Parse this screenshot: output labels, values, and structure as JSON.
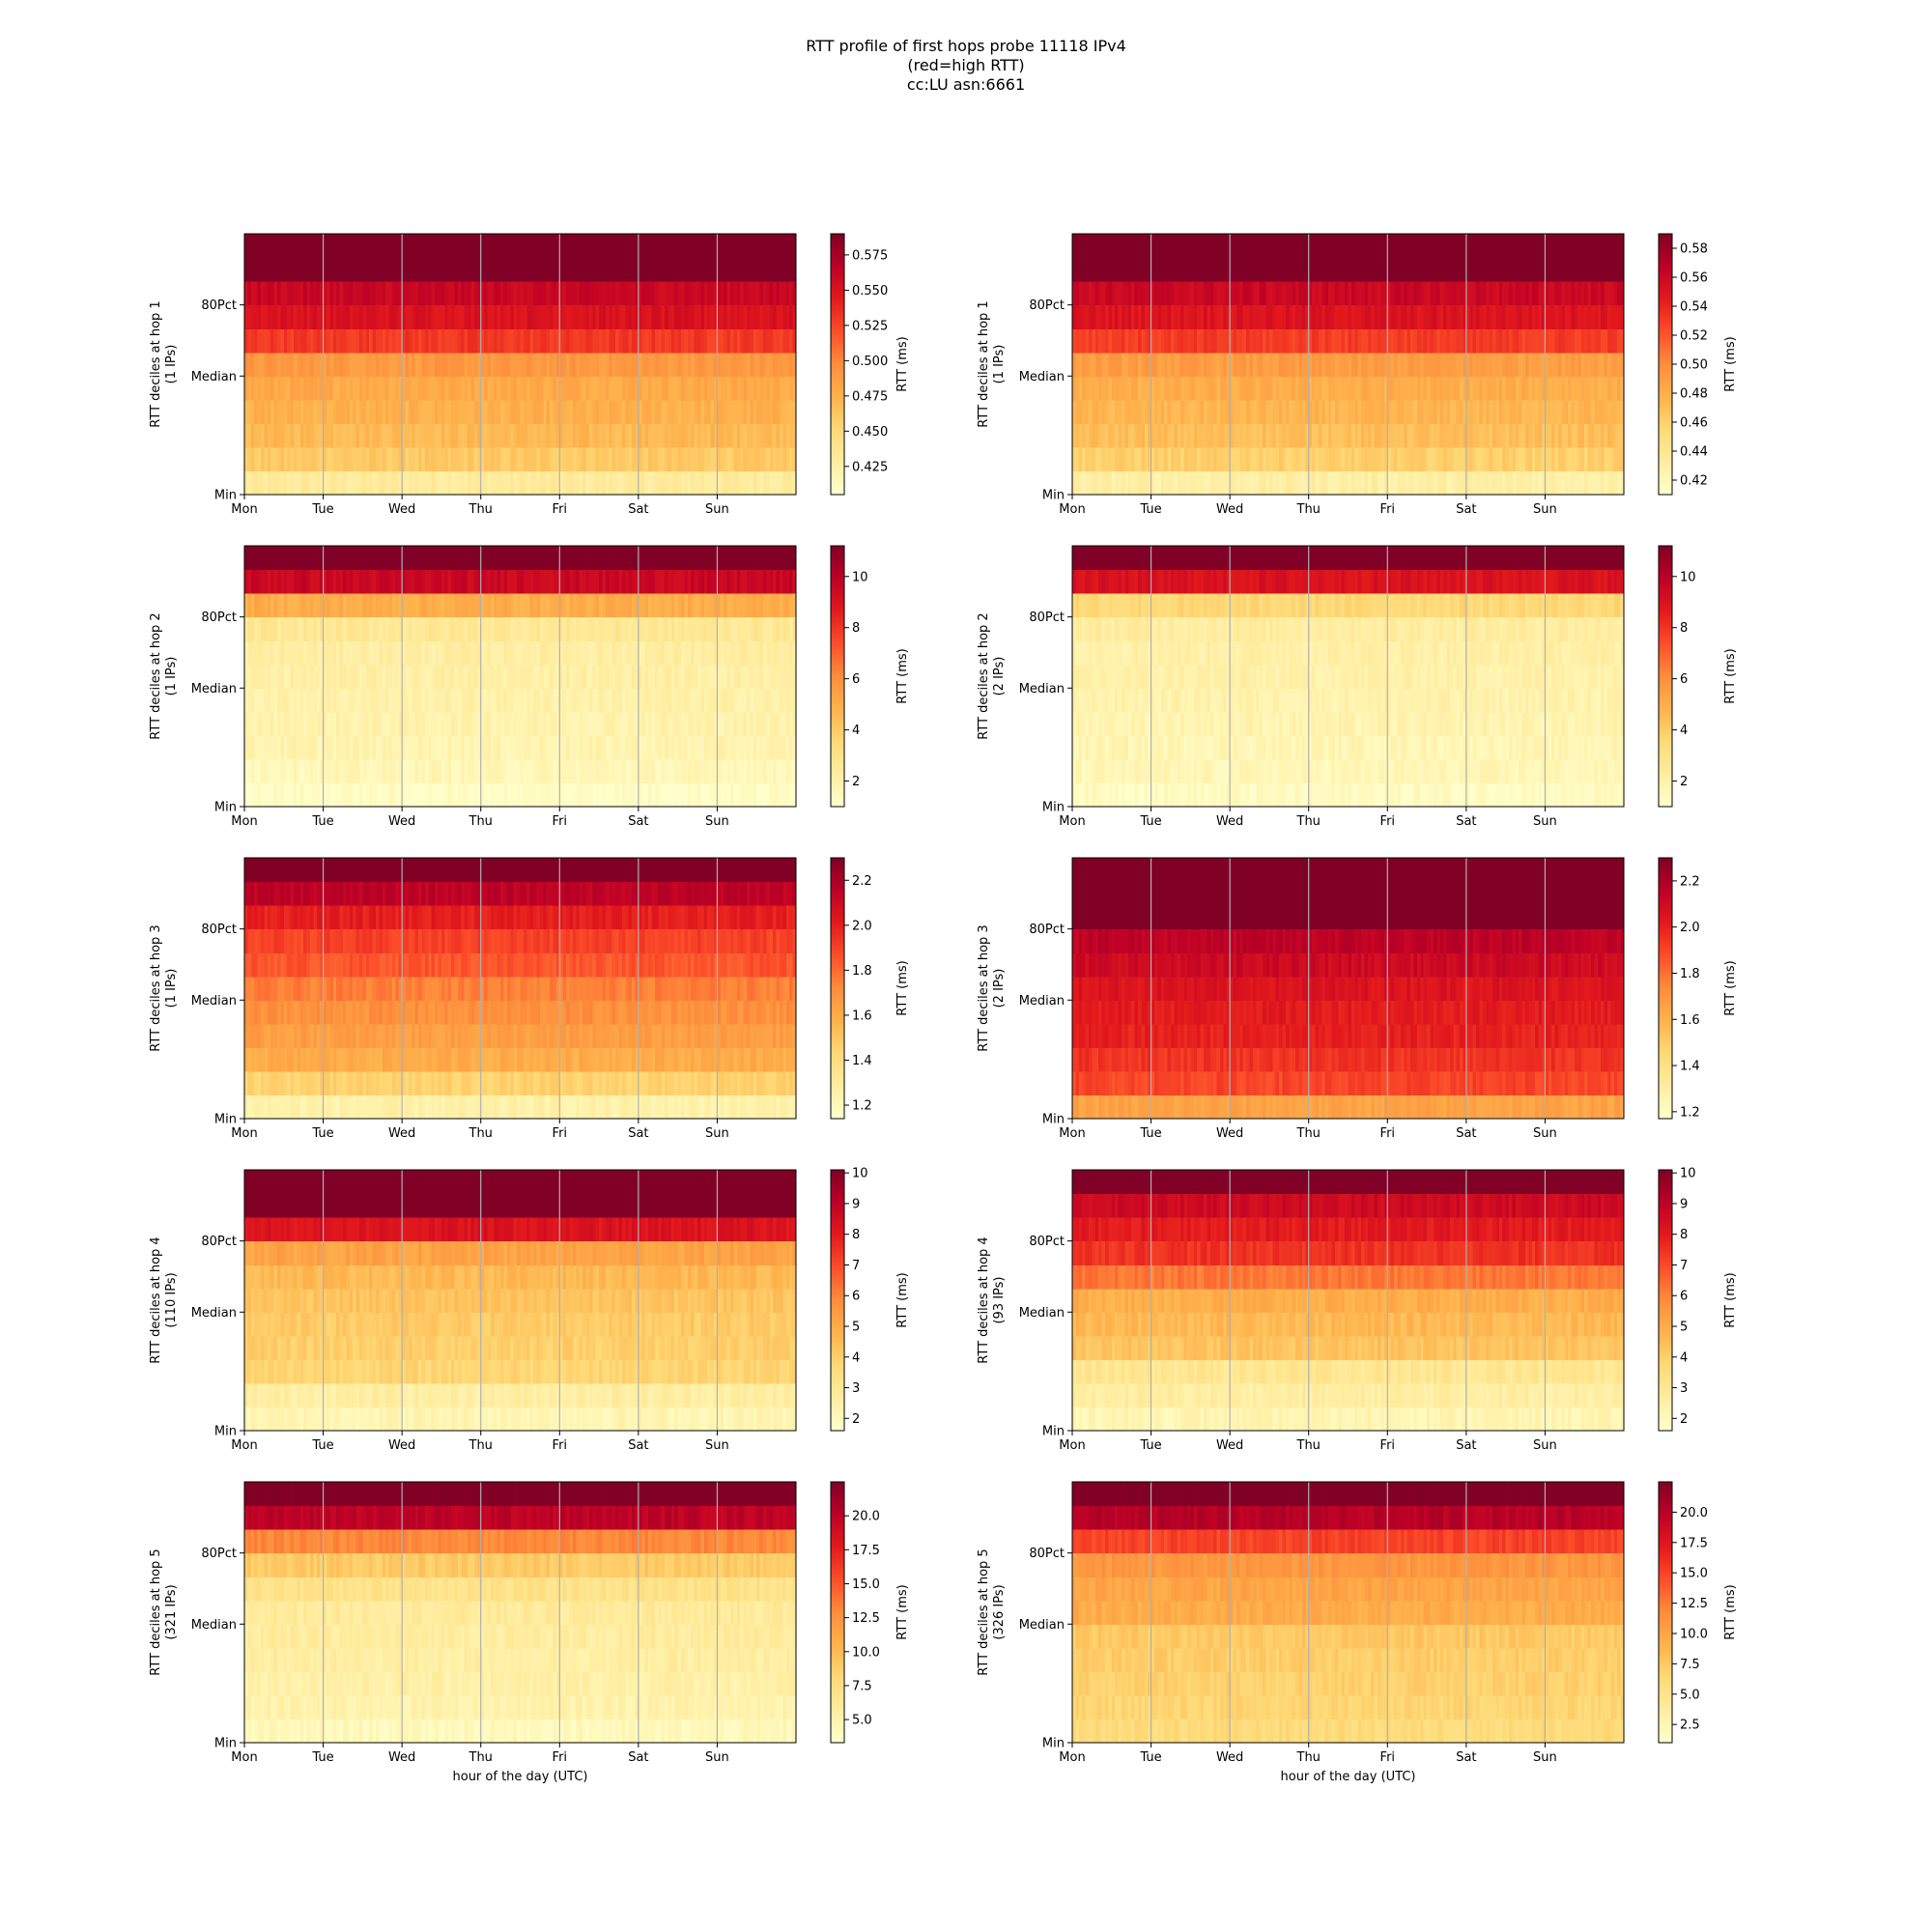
{
  "figure": {
    "title_lines": [
      "RTT profile of first hops probe 11118 IPv4",
      "(red=high RTT)",
      "cc:LU asn:6661"
    ]
  },
  "chart_data": [
    {
      "type": "heatmap",
      "panel": "hop1-left",
      "ylabel_lines": [
        "RTT deciles at hop 1",
        "(1 IPs)"
      ],
      "xlabel": "",
      "x_ticks": [
        "Mon",
        "Tue",
        "Wed",
        "Thu",
        "Fri",
        "Sat",
        "Sun"
      ],
      "y_ticks": [
        "Min",
        "Median",
        "80Pct"
      ],
      "colorbar": {
        "label": "RTT (ms)",
        "range": [
          0.405,
          0.59
        ],
        "ticks": [
          "0.425",
          "0.450",
          "0.475",
          "0.500",
          "0.525",
          "0.550",
          "0.575"
        ]
      },
      "decile_rtt": [
        0.43,
        0.46,
        0.47,
        0.475,
        0.48,
        0.49,
        0.53,
        0.55,
        0.56,
        0.6,
        0.6
      ],
      "deciles": 11,
      "time_columns": 168,
      "grid": true,
      "colormap": "YlOrRd"
    },
    {
      "type": "heatmap",
      "panel": "hop1-right",
      "ylabel_lines": [
        "RTT deciles at hop 1",
        "(1 IPs)"
      ],
      "xlabel": "",
      "x_ticks": [
        "Mon",
        "Tue",
        "Wed",
        "Thu",
        "Fri",
        "Sat",
        "Sun"
      ],
      "y_ticks": [
        "Min",
        "Median",
        "80Pct"
      ],
      "colorbar": {
        "label": "RTT (ms)",
        "range": [
          0.41,
          0.59
        ],
        "ticks": [
          "0.42",
          "0.44",
          "0.46",
          "0.48",
          "0.50",
          "0.52",
          "0.54",
          "0.56",
          "0.58"
        ]
      },
      "decile_rtt": [
        0.43,
        0.46,
        0.47,
        0.475,
        0.48,
        0.49,
        0.53,
        0.55,
        0.56,
        0.6,
        0.6
      ],
      "deciles": 11,
      "time_columns": 168,
      "grid": true,
      "colormap": "YlOrRd"
    },
    {
      "type": "heatmap",
      "panel": "hop2-left",
      "ylabel_lines": [
        "RTT deciles at hop 2",
        "(1 IPs)"
      ],
      "xlabel": "",
      "x_ticks": [
        "Mon",
        "Tue",
        "Wed",
        "Thu",
        "Fri",
        "Sat",
        "Sun"
      ],
      "y_ticks": [
        "Min",
        "Median",
        "80Pct"
      ],
      "colorbar": {
        "label": "RTT (ms)",
        "range": [
          1,
          11.2
        ],
        "ticks": [
          "2",
          "4",
          "6",
          "8",
          "10"
        ]
      },
      "decile_rtt": [
        1.2,
        1.6,
        1.8,
        1.9,
        2,
        2.1,
        2.2,
        2.6,
        5,
        9.5,
        11.5
      ],
      "deciles": 11,
      "time_columns": 168,
      "grid": true,
      "colormap": "YlOrRd"
    },
    {
      "type": "heatmap",
      "panel": "hop2-right",
      "ylabel_lines": [
        "RTT deciles at hop 2",
        "(2 IPs)"
      ],
      "xlabel": "",
      "x_ticks": [
        "Mon",
        "Tue",
        "Wed",
        "Thu",
        "Fri",
        "Sat",
        "Sun"
      ],
      "y_ticks": [
        "Min",
        "Median",
        "80Pct"
      ],
      "colorbar": {
        "label": "RTT (ms)",
        "range": [
          1,
          11.2
        ],
        "ticks": [
          "2",
          "4",
          "6",
          "8",
          "10"
        ]
      },
      "decile_rtt": [
        1.3,
        1.6,
        1.7,
        1.8,
        1.9,
        2,
        2.1,
        2.3,
        3.5,
        9,
        11.5
      ],
      "deciles": 11,
      "time_columns": 168,
      "grid": true,
      "colormap": "YlOrRd"
    },
    {
      "type": "heatmap",
      "panel": "hop3-left",
      "ylabel_lines": [
        "RTT deciles at hop 3",
        "(1 IPs)"
      ],
      "xlabel": "",
      "x_ticks": [
        "Mon",
        "Tue",
        "Wed",
        "Thu",
        "Fri",
        "Sat",
        "Sun"
      ],
      "y_ticks": [
        "Min",
        "Median",
        "80Pct"
      ],
      "colorbar": {
        "label": "RTT (ms)",
        "range": [
          1.14,
          2.3
        ],
        "ticks": [
          "1.2",
          "1.4",
          "1.6",
          "1.8",
          "2.0",
          "2.2"
        ]
      },
      "decile_rtt": [
        1.25,
        1.45,
        1.6,
        1.65,
        1.7,
        1.75,
        1.85,
        1.9,
        2.0,
        2.15,
        2.35
      ],
      "deciles": 11,
      "time_columns": 168,
      "grid": true,
      "colormap": "YlOrRd"
    },
    {
      "type": "heatmap",
      "panel": "hop3-right",
      "ylabel_lines": [
        "RTT deciles at hop 3",
        "(2 IPs)"
      ],
      "xlabel": "",
      "x_ticks": [
        "Mon",
        "Tue",
        "Wed",
        "Thu",
        "Fri",
        "Sat",
        "Sun"
      ],
      "y_ticks": [
        "Min",
        "Median",
        "80Pct"
      ],
      "colorbar": {
        "label": "RTT (ms)",
        "range": [
          1.17,
          2.3
        ],
        "ticks": [
          "1.2",
          "1.4",
          "1.6",
          "1.8",
          "2.0",
          "2.2"
        ]
      },
      "decile_rtt": [
        1.65,
        1.9,
        1.95,
        2.0,
        2.02,
        2.05,
        2.1,
        2.15,
        2.35,
        2.35,
        2.35
      ],
      "deciles": 11,
      "time_columns": 168,
      "grid": true,
      "colormap": "YlOrRd"
    },
    {
      "type": "heatmap",
      "panel": "hop4-left",
      "ylabel_lines": [
        "RTT deciles at hop 4",
        "(110 IPs)"
      ],
      "xlabel": "",
      "x_ticks": [
        "Mon",
        "Tue",
        "Wed",
        "Thu",
        "Fri",
        "Sat",
        "Sun"
      ],
      "y_ticks": [
        "Min",
        "Median",
        "80Pct"
      ],
      "colorbar": {
        "label": "RTT (ms)",
        "range": [
          1.6,
          10.1
        ],
        "ticks": [
          "2",
          "3",
          "4",
          "5",
          "6",
          "7",
          "8",
          "9",
          "10"
        ]
      },
      "decile_rtt": [
        2.2,
        2.6,
        3.8,
        4.0,
        4.1,
        4.3,
        4.6,
        5.2,
        8.2,
        10.5,
        10.5
      ],
      "deciles": 11,
      "time_columns": 168,
      "grid": true,
      "colormap": "YlOrRd"
    },
    {
      "type": "heatmap",
      "panel": "hop4-right",
      "ylabel_lines": [
        "RTT deciles at hop 4",
        "(93 IPs)"
      ],
      "xlabel": "",
      "x_ticks": [
        "Mon",
        "Tue",
        "Wed",
        "Thu",
        "Fri",
        "Sat",
        "Sun"
      ],
      "y_ticks": [
        "Min",
        "Median",
        "80Pct"
      ],
      "colorbar": {
        "label": "RTT (ms)",
        "range": [
          1.6,
          10.1
        ],
        "ticks": [
          "2",
          "3",
          "4",
          "5",
          "6",
          "7",
          "8",
          "9",
          "10"
        ]
      },
      "decile_rtt": [
        2.2,
        2.6,
        3.0,
        4.3,
        4.6,
        4.9,
        6.2,
        7.5,
        8.0,
        8.6,
        10.5
      ],
      "deciles": 11,
      "time_columns": 168,
      "grid": true,
      "colormap": "YlOrRd"
    },
    {
      "type": "heatmap",
      "panel": "hop5-left",
      "ylabel_lines": [
        "RTT deciles at hop 5",
        "(321 IPs)"
      ],
      "xlabel": "hour of the day (UTC)",
      "x_ticks": [
        "Mon",
        "Tue",
        "Wed",
        "Thu",
        "Fri",
        "Sat",
        "Sun"
      ],
      "y_ticks": [
        "Min",
        "Median",
        "80Pct"
      ],
      "colorbar": {
        "label": "RTT (ms)",
        "range": [
          3.3,
          22.5
        ],
        "ticks": [
          "5.0",
          "7.5",
          "10.0",
          "12.5",
          "15.0",
          "17.5",
          "20.0"
        ]
      },
      "decile_rtt": [
        4.2,
        5.0,
        5.3,
        5.5,
        5.7,
        6.0,
        7.0,
        9.0,
        13.0,
        20.0,
        23.0
      ],
      "deciles": 11,
      "time_columns": 168,
      "grid": true,
      "colormap": "YlOrRd"
    },
    {
      "type": "heatmap",
      "panel": "hop5-right",
      "ylabel_lines": [
        "RTT deciles at hop 5",
        "(326 IPs)"
      ],
      "xlabel": "hour of the day (UTC)",
      "x_ticks": [
        "Mon",
        "Tue",
        "Wed",
        "Thu",
        "Fri",
        "Sat",
        "Sun"
      ],
      "y_ticks": [
        "Min",
        "Median",
        "80Pct"
      ],
      "colorbar": {
        "label": "RTT (ms)",
        "range": [
          1.0,
          22.5
        ],
        "ticks": [
          "2.5",
          "5.0",
          "7.5",
          "10.0",
          "12.5",
          "15.0",
          "17.5",
          "20.0"
        ]
      },
      "decile_rtt": [
        6.0,
        6.5,
        7.0,
        7.2,
        7.5,
        9.5,
        10.0,
        11.0,
        15.0,
        20.0,
        23.0
      ],
      "deciles": 11,
      "time_columns": 168,
      "grid": true,
      "colormap": "YlOrRd"
    }
  ]
}
